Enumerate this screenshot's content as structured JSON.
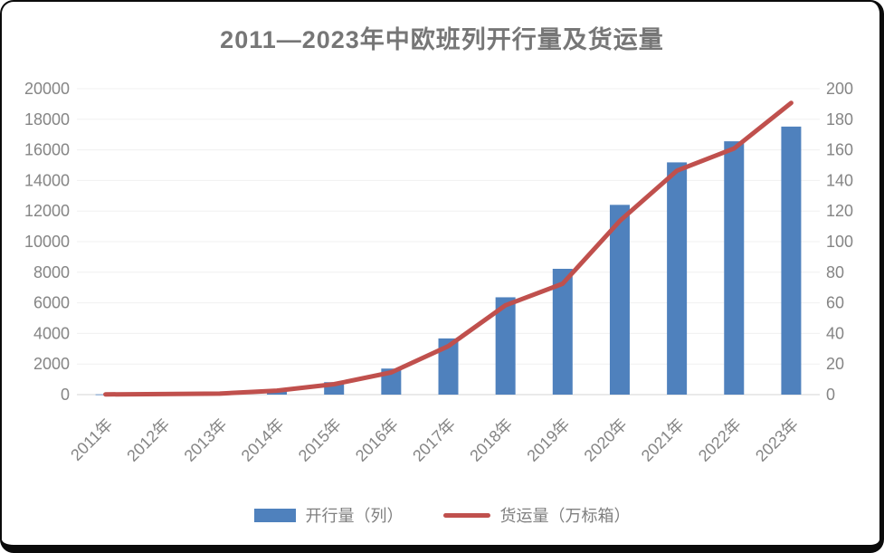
{
  "chart_data": {
    "type": "bar+line combo",
    "title": "2011—2023年中欧班列开行量及货运量",
    "categories": [
      "2011年",
      "2012年",
      "2013年",
      "2014年",
      "2015年",
      "2016年",
      "2017年",
      "2018年",
      "2019年",
      "2020年",
      "2021年",
      "2022年",
      "2023年"
    ],
    "series": [
      {
        "name": "开行量（列）",
        "type": "bar",
        "axis": "left",
        "color": "#4F81BD",
        "values": [
          17,
          42,
          80,
          308,
          815,
          1702,
          3673,
          6363,
          8225,
          12406,
          15183,
          16562,
          17523
        ]
      },
      {
        "name": "货运量（万标箱）",
        "type": "line",
        "axis": "right",
        "color": "#C0504D",
        "values": [
          0.14,
          0.4,
          0.7,
          2.6,
          6.8,
          14.5,
          31.7,
          58.4,
          72.5,
          113.5,
          146.4,
          160.9,
          190.7
        ]
      }
    ],
    "left_axis": {
      "min": 0,
      "max": 20000,
      "step": 2000,
      "tick_labels": [
        "0",
        "2000",
        "4000",
        "6000",
        "8000",
        "10000",
        "12000",
        "14000",
        "16000",
        "18000",
        "20000"
      ]
    },
    "right_axis": {
      "min": 0,
      "max": 200,
      "step": 20,
      "tick_labels": [
        "0",
        "20",
        "40",
        "60",
        "80",
        "100",
        "120",
        "140",
        "160",
        "180",
        "200"
      ]
    },
    "grid": true,
    "legend_position": "bottom",
    "x_label_rotation_deg": -45
  }
}
